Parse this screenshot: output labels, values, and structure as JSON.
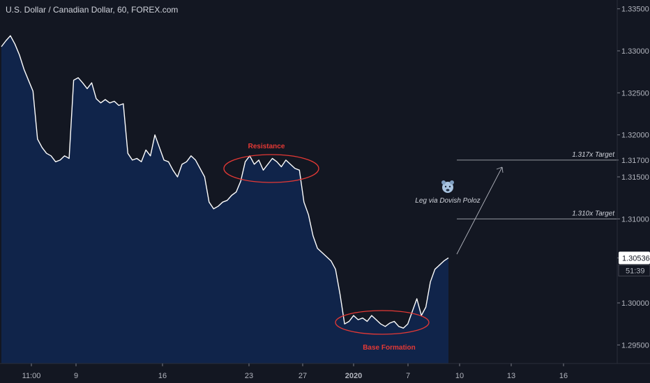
{
  "header": {
    "title": "U.S. Dollar / Canadian Dollar, 60, FOREX.com"
  },
  "chart_data": {
    "type": "area",
    "symbol": "USDCAD",
    "interval": "60",
    "source": "FOREX.com",
    "x_tick_labels": [
      "11:00",
      "9",
      "16",
      "23",
      "27",
      "2020",
      "7",
      "10",
      "13",
      "16"
    ],
    "y_tick_labels": [
      "1.33500",
      "1.33000",
      "1.32500",
      "1.32000",
      "1.31700",
      "1.31500",
      "1.31000",
      "1.30536",
      "1.30000",
      "1.29500"
    ],
    "ylim": [
      1.2925,
      1.3375
    ],
    "last_price": "1.30536",
    "countdown": "51:39",
    "series": [
      {
        "values": [
          1.3305,
          1.3312,
          1.3318,
          1.3308,
          1.3295,
          1.3278,
          1.3265,
          1.3252,
          1.3195,
          1.3185,
          1.3178,
          1.3175,
          1.3168,
          1.317,
          1.3175,
          1.3172,
          1.3265,
          1.3268,
          1.3262,
          1.3255,
          1.3262,
          1.3243,
          1.3238,
          1.3242,
          1.3238,
          1.324,
          1.3235,
          1.3237,
          1.3178,
          1.317,
          1.3172,
          1.3168,
          1.3182,
          1.3175,
          1.32,
          1.3185,
          1.317,
          1.3168,
          1.3158,
          1.315,
          1.3165,
          1.3168,
          1.3175,
          1.317,
          1.316,
          1.315,
          1.312,
          1.3112,
          1.3115,
          1.312,
          1.3122,
          1.3128,
          1.3132,
          1.3145,
          1.3168,
          1.3175,
          1.3165,
          1.317,
          1.3158,
          1.3165,
          1.3172,
          1.3168,
          1.3162,
          1.317,
          1.3165,
          1.316,
          1.3158,
          1.312,
          1.3105,
          1.308,
          1.3065,
          1.306,
          1.3055,
          1.305,
          1.304,
          1.301,
          1.2975,
          1.2978,
          1.2985,
          1.298,
          1.2982,
          1.2978,
          1.2985,
          1.298,
          1.2975,
          1.2972,
          1.2976,
          1.2978,
          1.2972,
          1.297,
          1.2975,
          1.299,
          1.3005,
          1.2985,
          1.2995,
          1.3025,
          1.304,
          1.3045,
          1.305,
          1.30536
        ]
      }
    ],
    "annotations": {
      "resistance_label": "Resistance",
      "base_label": "Base Formation",
      "leg_label": "Leg via Dovish Poloz",
      "target1_label": "1.317x Target",
      "target1_value": 1.317,
      "target2_label": "1.310x Target",
      "target2_value": 1.31
    },
    "colors": {
      "background": "#131722",
      "area_fill": "#10244a",
      "line": "#ffffff",
      "annotation_red": "#e53935",
      "axis_text": "#b2b5be"
    }
  }
}
